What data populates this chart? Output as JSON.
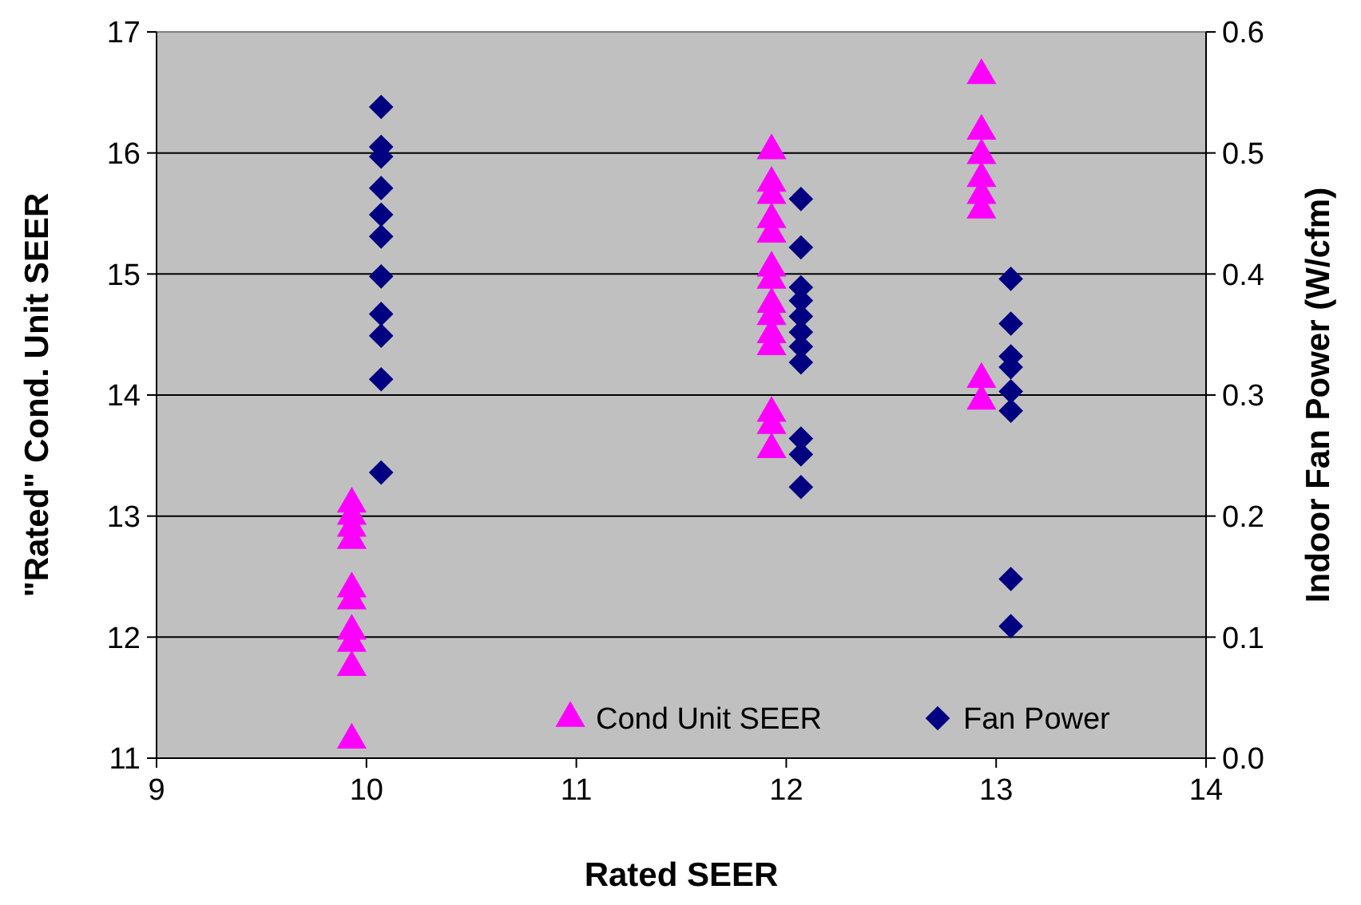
{
  "chart_data": {
    "type": "scatter",
    "xlabel": "Rated SEER",
    "ylabel": "\"Rated\" Cond. Unit SEER",
    "y2label": "Indoor Fan Power (W/cfm)",
    "xlim": [
      9,
      14
    ],
    "xticks": [
      9,
      10,
      11,
      12,
      13,
      14
    ],
    "ylim": [
      11,
      17
    ],
    "yticks": [
      11,
      12,
      13,
      14,
      15,
      16,
      17
    ],
    "y2lim": [
      0,
      0.6
    ],
    "y2ticks": [
      {
        "value": 0,
        "label": "0.0"
      },
      0.1,
      0.2,
      0.3,
      0.4,
      0.5,
      0.6
    ],
    "grid": "y",
    "legend": "bottom right",
    "series": [
      {
        "name": "Cond Unit SEER",
        "color": "#ff00ff",
        "marker": "triangle",
        "x": [
          9.93,
          9.93,
          9.93,
          9.93,
          9.93,
          9.93,
          9.93,
          9.93,
          9.93,
          9.93,
          11.93,
          11.93,
          11.93,
          11.93,
          11.93,
          11.93,
          11.93,
          11.93,
          11.93,
          11.93,
          11.93,
          11.93,
          11.93,
          11.93,
          12.93,
          12.93,
          12.93,
          12.93,
          12.93,
          12.93,
          12.93,
          12.93
        ],
        "values": [
          13.1,
          13.0,
          12.9,
          12.8,
          12.4,
          12.3,
          12.05,
          11.95,
          11.75,
          11.15,
          16.02,
          15.75,
          15.65,
          15.45,
          15.33,
          15.05,
          14.95,
          14.75,
          14.65,
          14.5,
          14.4,
          13.85,
          13.75,
          13.55,
          16.64,
          16.18,
          15.98,
          15.79,
          15.65,
          15.53,
          14.13,
          13.95
        ]
      },
      {
        "name": "Fan Power",
        "color": "#000080",
        "marker": "diamond",
        "axis": "y2",
        "x": [
          10.07,
          10.07,
          10.07,
          10.07,
          10.07,
          10.07,
          10.07,
          10.07,
          10.07,
          10.07,
          10.07,
          12.07,
          12.07,
          12.07,
          12.07,
          12.07,
          12.07,
          12.07,
          12.07,
          12.07,
          12.07,
          12.07,
          13.07,
          13.07,
          13.07,
          13.07,
          13.07,
          13.07,
          13.07,
          13.07
        ],
        "values": [
          0.538,
          0.505,
          0.497,
          0.471,
          0.449,
          0.431,
          0.398,
          0.367,
          0.349,
          0.313,
          0.236,
          0.462,
          0.422,
          0.389,
          0.378,
          0.365,
          0.352,
          0.34,
          0.327,
          0.264,
          0.251,
          0.224,
          0.396,
          0.359,
          0.332,
          0.323,
          0.303,
          0.287,
          0.148,
          0.109
        ]
      }
    ]
  }
}
